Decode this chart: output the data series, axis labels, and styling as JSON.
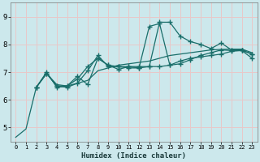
{
  "xlabel": "Humidex (Indice chaleur)",
  "bg_color": "#cce8ec",
  "grid_color": "#e8c8c8",
  "line_color": "#1a6e6a",
  "xlim": [
    -0.5,
    23.5
  ],
  "ylim": [
    4.5,
    9.5
  ],
  "yticks": [
    5,
    6,
    7,
    8,
    9
  ],
  "xticks": [
    0,
    1,
    2,
    3,
    4,
    5,
    6,
    7,
    8,
    9,
    10,
    11,
    12,
    13,
    14,
    15,
    16,
    17,
    18,
    19,
    20,
    21,
    22,
    23
  ],
  "series": [
    {
      "x": [
        0,
        1,
        2,
        3,
        4,
        5,
        6,
        7,
        8,
        9,
        10,
        11,
        12,
        13,
        14,
        15,
        16,
        17,
        18,
        19,
        20,
        21,
        22,
        23
      ],
      "y": [
        4.65,
        4.95,
        6.45,
        6.95,
        6.55,
        6.5,
        6.6,
        6.7,
        7.05,
        7.15,
        7.25,
        7.3,
        7.35,
        7.4,
        7.5,
        7.6,
        7.65,
        7.7,
        7.75,
        7.8,
        7.82,
        7.83,
        7.83,
        7.7
      ],
      "marker": false
    },
    {
      "x": [
        2,
        3,
        4,
        5,
        6,
        7,
        8,
        9,
        10,
        11,
        12,
        13,
        14,
        15,
        16,
        17,
        18,
        19,
        20,
        21,
        22,
        23
      ],
      "y": [
        6.45,
        6.95,
        6.5,
        6.45,
        6.6,
        7.05,
        7.6,
        7.2,
        7.2,
        7.2,
        7.2,
        7.2,
        8.8,
        8.8,
        8.3,
        8.1,
        8.0,
        7.85,
        8.05,
        7.8,
        7.8,
        7.65
      ],
      "marker": true
    },
    {
      "x": [
        2,
        3,
        4,
        5,
        6,
        7,
        8,
        9,
        10,
        11,
        12,
        13,
        14,
        15,
        16,
        17,
        18,
        19,
        20,
        21,
        22,
        23
      ],
      "y": [
        6.45,
        7.0,
        6.45,
        6.5,
        6.75,
        7.2,
        7.5,
        7.25,
        7.1,
        7.2,
        7.15,
        7.2,
        7.2,
        7.25,
        7.4,
        7.5,
        7.55,
        7.6,
        7.65,
        7.75,
        7.78,
        7.5
      ],
      "marker": true
    },
    {
      "x": [
        2,
        3,
        4,
        5,
        6,
        7,
        8,
        9,
        10,
        11,
        12,
        13,
        14,
        15,
        16,
        17,
        18,
        19,
        20,
        21,
        22,
        23
      ],
      "y": [
        6.45,
        6.95,
        6.5,
        6.5,
        6.85,
        6.55,
        7.5,
        7.25,
        7.2,
        7.15,
        7.15,
        8.65,
        8.75,
        7.25,
        7.3,
        7.45,
        7.6,
        7.7,
        7.8,
        7.78,
        7.78,
        7.65
      ],
      "marker": true
    }
  ]
}
